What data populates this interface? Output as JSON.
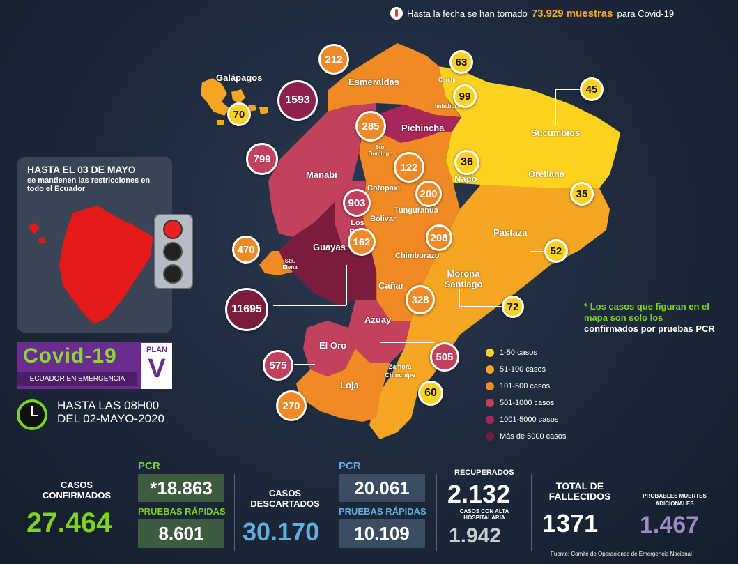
{
  "top_note": {
    "prefix": "Hasta la fecha se han tomado",
    "value": "73.929 muestras",
    "suffix": "para Covid-19"
  },
  "provinces": {
    "galapagos": "Galápagos",
    "esmeraldas": "Esmeraldas",
    "carchi": "Carchi",
    "imbabura": "Imbabura",
    "sucumbios": "Sucumbíos",
    "pichincha": "Pichincha",
    "sto_domingo": "Sto. Domingo",
    "manabi": "Manabí",
    "napo": "Napo",
    "orellana": "Orellana",
    "cotopaxi": "Cotopaxi",
    "tungurahua": "Tungurahua",
    "los_rios": "Los Ríos",
    "bolivar": "Bolivar",
    "pastaza": "Pastaza",
    "guayas": "Guayas",
    "sta_elena": "Sta. Elena",
    "chimborazo": "Chimborazo",
    "morona": "Morona Santiago",
    "canar": "Cañar",
    "azuay": "Azuay",
    "el_oro": "El Oro",
    "zamora": "Zamora Chinchipe",
    "loja": "Loja"
  },
  "cases": {
    "galapagos": "70",
    "esmeraldas": "212",
    "carchi": "63",
    "imbabura": "99",
    "sucumbios": "45",
    "pichincha": "1593",
    "sto_domingo": "285",
    "manabi": "799",
    "napo": "36",
    "orellana": "35",
    "cotopaxi": "122",
    "tungurahua": "200",
    "los_rios": "903",
    "bolivar": "162",
    "pastaza": "52",
    "chimborazo": "208",
    "sta_elena": "470",
    "guayas": "11695",
    "morona": "72",
    "canar": "328",
    "azuay": "505",
    "el_oro": "575",
    "zamora": "60",
    "loja": "270"
  },
  "panel": {
    "title": "HASTA EL 03 DE MAYO",
    "subtitle": "se mantienen las restricciones en todo el Ecuador"
  },
  "legend": [
    {
      "label": "1-50 casos",
      "color": "#ffd21f"
    },
    {
      "label": "51-100 casos",
      "color": "#f5a623"
    },
    {
      "label": "101-500 casos",
      "color": "#f08a24"
    },
    {
      "label": "501-1000 casos",
      "color": "#c2415d"
    },
    {
      "label": "1001-5000 casos",
      "color": "#a8275a"
    },
    {
      "label": "Más de 5000 casos",
      "color": "#7a1c3e"
    }
  ],
  "note": {
    "star": "*",
    "part1": "Los casos que figuran en el mapa son solo los",
    "part2": "confirmados por pruebas PCR"
  },
  "covid_banner": {
    "title": "Covid-19",
    "subtitle": "ECUADOR EN EMERGENCIA",
    "plan": "PLAN",
    "plan_letter": "V"
  },
  "timestamp": {
    "line1": "HASTA LAS 08H00",
    "line2": "DEL 02-MAYO-2020"
  },
  "stats": {
    "confirmed_label": "CASOS CONFIRMADOS",
    "confirmed_value": "27.464",
    "pcr_label": "PCR",
    "pcr_value": "*18.863",
    "rapid_label": "PRUEBAS RÁPIDAS",
    "rapid_value": "8.601",
    "discarded_label": "CASOS DESCARTADOS",
    "discarded_value": "30.170",
    "disc_pcr_label": "PCR",
    "disc_pcr_value": "20.061",
    "disc_rapid_label": "PRUEBAS RÁPIDAS",
    "disc_rapid_value": "10.109",
    "recovered_label": "RECUPERADOS",
    "recovered_value": "2.132",
    "discharged_label": "CASOS CON ALTA HOSPITALARIA",
    "discharged_value": "1.942",
    "deaths_label": "TOTAL DE FALLECIDOS",
    "deaths_value": "1371",
    "probable_label": "PROBABLES MUERTES ADICIONALES",
    "probable_value": "1.467"
  },
  "source": "Fuente: Comité de Operaciones de Emergencia Nacional",
  "colors": {
    "accent_green": "#7ed321",
    "accent_orange": "#f5a623",
    "accent_blue": "#5fb0e0",
    "accent_purple": "#9b8ac4"
  }
}
